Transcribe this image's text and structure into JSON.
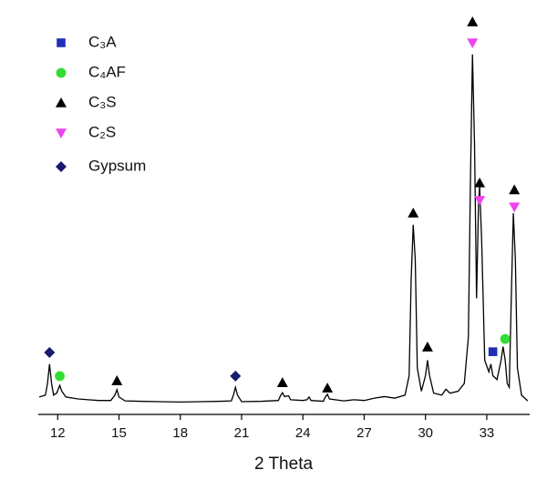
{
  "chart_data": {
    "type": "line",
    "xlabel": "2 Theta",
    "color": "#000000",
    "xlim": [
      11.05,
      35.1
    ],
    "ylim": [
      0,
      105
    ],
    "xticks": [
      12,
      15,
      18,
      21,
      24,
      27,
      30,
      33
    ],
    "x": [
      11.1,
      11.4,
      11.5,
      11.6,
      11.7,
      11.8,
      11.95,
      12.1,
      12.2,
      12.4,
      13,
      13.5,
      14,
      14.6,
      14.8,
      14.9,
      15.0,
      15.3,
      16,
      17,
      18,
      19,
      20,
      20.5,
      20.6,
      20.7,
      20.8,
      21,
      22,
      22.8,
      22.9,
      23.0,
      23.1,
      23.3,
      23.4,
      24,
      24.2,
      24.3,
      24.4,
      25,
      25.1,
      25.2,
      25.3,
      26,
      26.5,
      27,
      27.5,
      28,
      28.5,
      29,
      29.2,
      29.3,
      29.4,
      29.5,
      29.6,
      29.8,
      30.0,
      30.1,
      30.2,
      30.4,
      30.8,
      31,
      31.2,
      31.6,
      31.9,
      32.1,
      32.2,
      32.3,
      32.4,
      32.5,
      32.6,
      32.65,
      32.75,
      32.9,
      33.1,
      33.2,
      33.3,
      33.5,
      33.7,
      33.8,
      33.9,
      34.0,
      34.1,
      34.2,
      34.3,
      34.4,
      34.5,
      34.7,
      35.0
    ],
    "values": [
      4.5,
      5,
      8,
      13,
      8,
      5,
      5.5,
      7.5,
      6,
      4.5,
      4,
      3.8,
      3.6,
      3.6,
      5,
      6.4,
      4.5,
      3.5,
      3.4,
      3.3,
      3.2,
      3.3,
      3.4,
      3.5,
      5,
      7,
      5,
      3.3,
      3.4,
      3.6,
      4.8,
      5.6,
      4.6,
      4.8,
      3.8,
      3.6,
      3.8,
      4.5,
      3.6,
      3.4,
      4.5,
      5.2,
      4,
      3.5,
      3.8,
      3.6,
      4.2,
      4.6,
      4.2,
      5,
      10,
      35,
      49,
      40,
      12,
      6,
      10,
      14,
      10,
      5.5,
      5,
      6.5,
      5.5,
      6,
      8,
      20,
      60,
      93,
      70,
      30,
      55,
      59,
      45,
      14,
      11,
      13,
      10,
      9,
      14,
      17.5,
      14,
      8,
      7,
      30,
      52,
      40,
      12,
      5,
      3.5
    ],
    "markers": [
      {
        "name": "C₃A",
        "color": "#1f2fb8",
        "shape": "square",
        "x": [
          33.3
        ],
        "y": [
          16.2
        ]
      },
      {
        "name": "C₄AF",
        "color": "#33dd33",
        "shape": "circle",
        "x": [
          12.1,
          33.9
        ],
        "y": [
          9.9,
          19.5
        ]
      },
      {
        "name": "C₃S",
        "color": "#000000",
        "shape": "triangle-up",
        "x": [
          14.9,
          23.0,
          25.2,
          29.4,
          30.1,
          32.3,
          32.65,
          34.35
        ],
        "y": [
          8.7,
          8.2,
          6.8,
          52,
          17.4,
          101.4,
          59.8,
          58
        ]
      },
      {
        "name": "C₂S",
        "color": "#ee44ee",
        "shape": "triangle-down",
        "x": [
          32.3,
          32.65,
          34.35
        ],
        "y": [
          96,
          55.3,
          53.6
        ]
      },
      {
        "name": "Gypsum",
        "color": "#1a1a6e",
        "shape": "diamond",
        "x": [
          11.6,
          20.7
        ],
        "y": [
          16,
          9.9
        ]
      }
    ]
  }
}
